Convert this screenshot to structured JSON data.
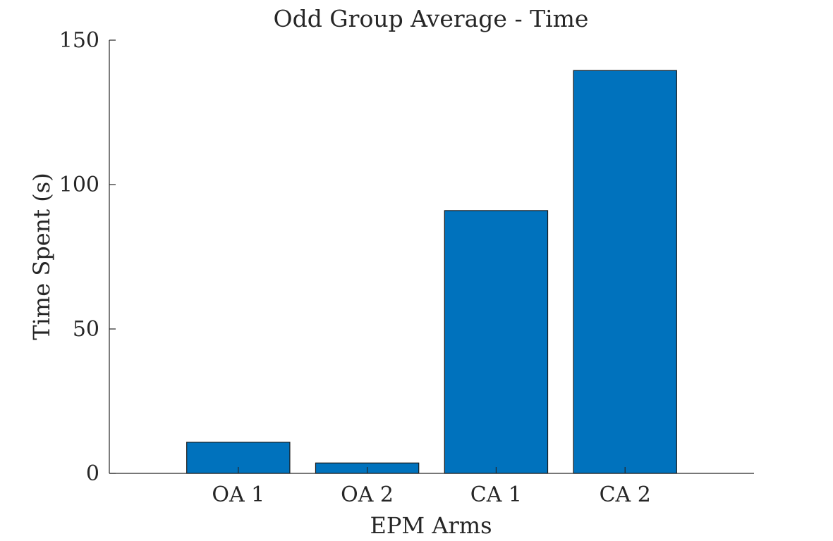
{
  "chart_data": {
    "type": "bar",
    "title": "Odd Group Average - Time",
    "xlabel": "EPM Arms",
    "ylabel": "Time Spent (s)",
    "categories": [
      "OA 1",
      "OA 2",
      "CA 1",
      "CA 2"
    ],
    "values": [
      10.8,
      3.6,
      91,
      139.5
    ],
    "ylim": [
      0,
      150
    ],
    "yticks": [
      "0",
      "50",
      "100",
      "150"
    ],
    "bar_color": "#0072BD",
    "grid": false,
    "legend": "none"
  }
}
